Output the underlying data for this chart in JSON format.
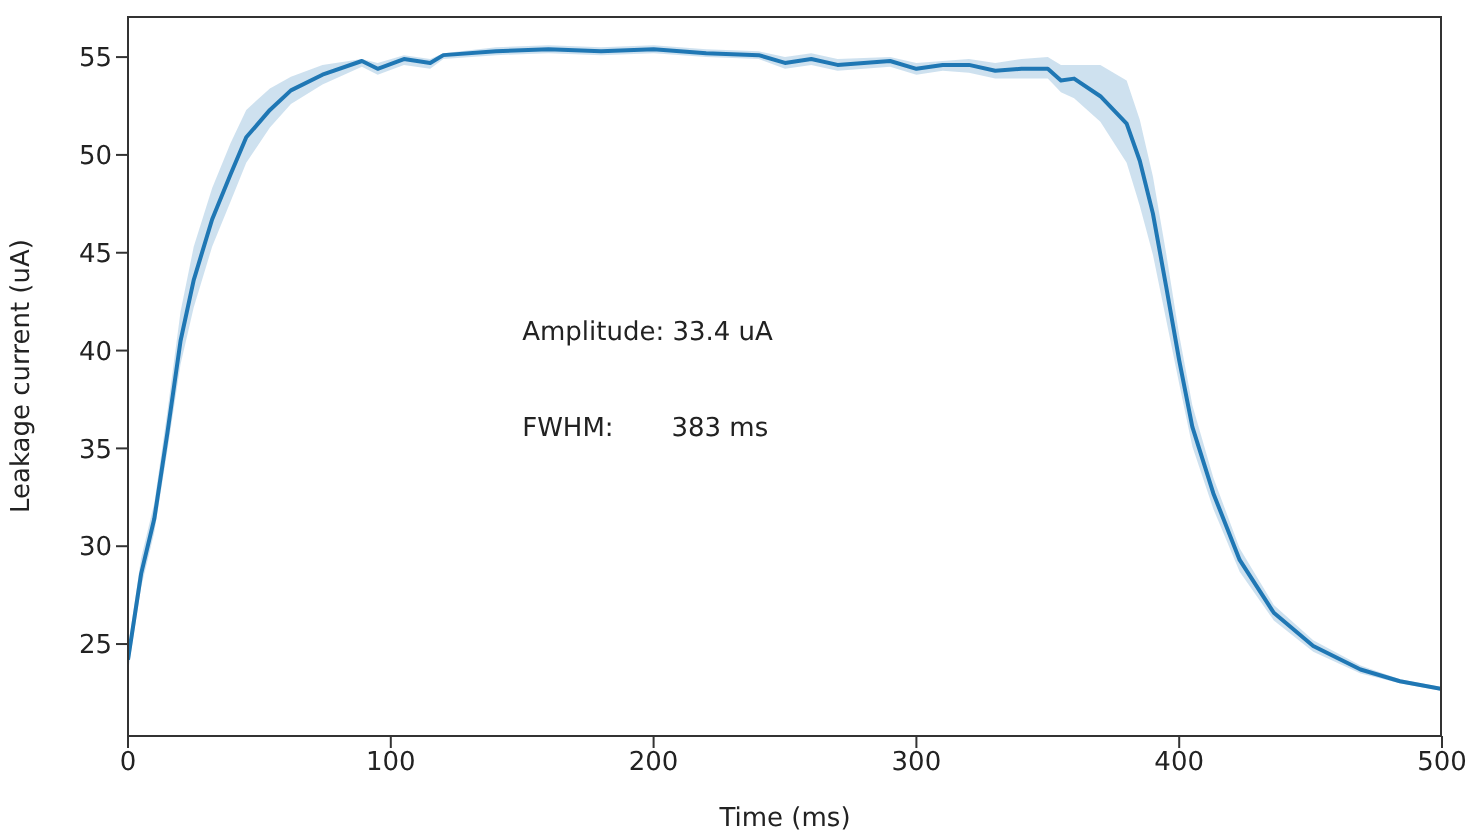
{
  "chart_data": {
    "type": "line",
    "xlabel": "Time (ms)",
    "ylabel": "Leakage current (uA)",
    "annotations": [
      "Amplitude: 33.4 uA",
      "FWHM:       383 ms"
    ],
    "xlim": [
      0,
      500
    ],
    "xticks": [
      0,
      100,
      200,
      300,
      400,
      500
    ],
    "ylim": [
      20.3,
      57.1
    ],
    "yticks": [
      25,
      30,
      35,
      40,
      45,
      50,
      55
    ],
    "x": [
      0,
      5,
      10,
      15,
      20,
      25,
      32,
      39,
      45,
      54,
      62,
      74,
      89,
      95,
      105,
      115,
      120,
      140,
      160,
      180,
      200,
      220,
      240,
      250,
      260,
      270,
      290,
      300,
      310,
      320,
      330,
      340,
      350,
      355,
      360,
      370,
      380,
      385,
      390,
      395,
      400,
      405,
      413,
      423,
      436,
      451,
      469,
      484,
      500
    ],
    "series": [
      {
        "color": "#1f77b4",
        "values": [
          24.2,
          28.6,
          31.4,
          35.8,
          40.5,
          43.6,
          46.7,
          49.0,
          50.9,
          52.3,
          53.3,
          54.1,
          54.8,
          54.4,
          54.9,
          54.7,
          55.1,
          55.3,
          55.4,
          55.3,
          55.4,
          55.2,
          55.1,
          54.7,
          54.9,
          54.6,
          54.8,
          54.4,
          54.6,
          54.6,
          54.3,
          54.4,
          54.4,
          53.8,
          53.9,
          53.0,
          51.6,
          49.7,
          47.0,
          43.3,
          39.5,
          36.1,
          32.7,
          29.3,
          26.6,
          24.9,
          23.7,
          23.1,
          22.7
        ],
        "lower": [
          23.6,
          27.9,
          30.7,
          34.9,
          39.3,
          42.2,
          45.3,
          47.6,
          49.6,
          51.4,
          52.6,
          53.6,
          54.5,
          54.1,
          54.6,
          54.4,
          54.9,
          55.1,
          55.2,
          55.1,
          55.2,
          55.0,
          54.9,
          54.4,
          54.6,
          54.3,
          54.5,
          54.1,
          54.3,
          54.2,
          53.9,
          53.9,
          53.9,
          53.2,
          52.9,
          51.7,
          49.6,
          47.4,
          44.9,
          41.6,
          38.3,
          35.1,
          31.9,
          28.7,
          26.2,
          24.6,
          23.5,
          23.0,
          22.6
        ],
        "upper": [
          24.8,
          29.4,
          32.2,
          36.9,
          42.0,
          45.3,
          48.3,
          50.6,
          52.3,
          53.4,
          54.0,
          54.6,
          54.9,
          54.7,
          55.1,
          54.9,
          55.2,
          55.5,
          55.6,
          55.5,
          55.6,
          55.4,
          55.3,
          55.0,
          55.2,
          54.9,
          55.0,
          54.7,
          54.8,
          54.9,
          54.7,
          54.9,
          55.0,
          54.6,
          54.6,
          54.6,
          53.8,
          51.8,
          48.9,
          45.0,
          40.8,
          37.2,
          33.5,
          29.9,
          27.0,
          25.2,
          23.9,
          23.2,
          22.8
        ]
      }
    ]
  }
}
